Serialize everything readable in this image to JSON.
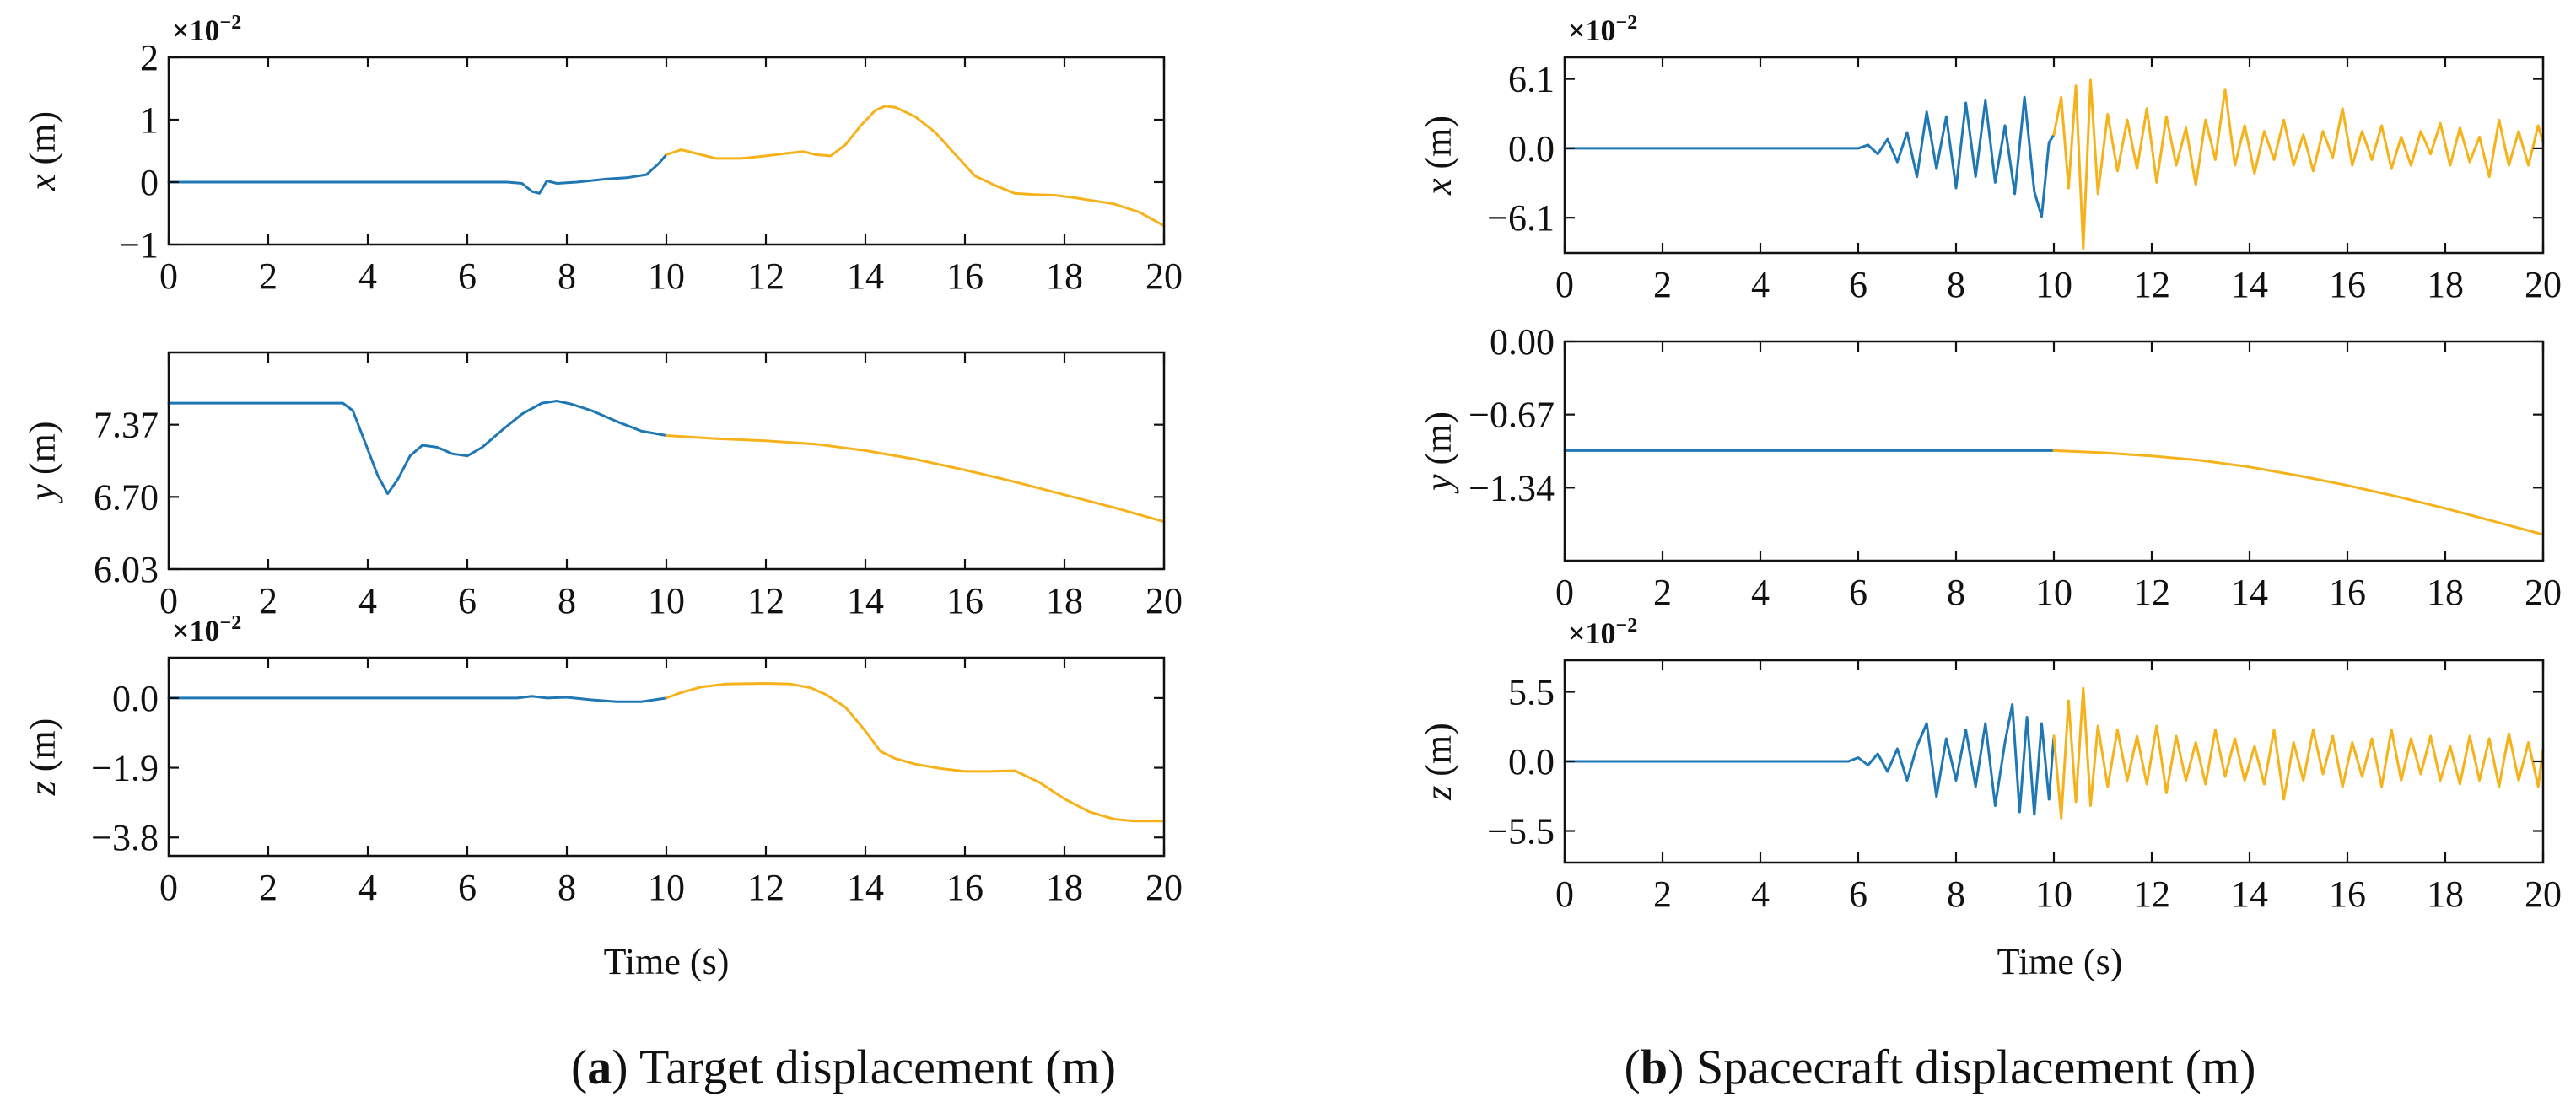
{
  "colors": {
    "phase1": "#1f77b4",
    "phase2": "#f5b21b"
  },
  "chart_data": [
    {
      "id": "a_x",
      "type": "line",
      "ylabel_var": "x",
      "ylabel_unit": "(m)",
      "multiplier": "×10",
      "multiplier_exp": "−2",
      "xlim": [
        0,
        20
      ],
      "ylim": [
        -1,
        2
      ],
      "xticks": [
        "0",
        "2",
        "4",
        "6",
        "8",
        "10",
        "12",
        "14",
        "16",
        "18",
        "20"
      ],
      "yticks": [
        {
          "v": 2,
          "t": "2"
        },
        {
          "v": 1,
          "t": "1"
        },
        {
          "v": 0,
          "t": "0"
        },
        {
          "v": -1,
          "t": "−1"
        }
      ],
      "series": [
        {
          "name": "phase1",
          "x": [
            0,
            6.8,
            7.1,
            7.3,
            7.45,
            7.6,
            7.8,
            8.2,
            8.8,
            9.2,
            9.6,
            9.85,
            10
          ],
          "y": [
            0,
            0,
            -0.02,
            -0.15,
            -0.18,
            0.02,
            -0.02,
            0,
            0.05,
            0.07,
            0.12,
            0.3,
            0.44
          ]
        },
        {
          "name": "phase2",
          "x": [
            10,
            10.3,
            10.6,
            11,
            11.5,
            12,
            12.4,
            12.75,
            13,
            13.3,
            13.6,
            13.9,
            14.2,
            14.4,
            14.6,
            15,
            15.4,
            15.8,
            16.2,
            16.6,
            17,
            17.4,
            17.8,
            18.2,
            18.6,
            19,
            19.5,
            20
          ],
          "y": [
            0.44,
            0.52,
            0.46,
            0.38,
            0.38,
            0.42,
            0.46,
            0.49,
            0.44,
            0.42,
            0.6,
            0.9,
            1.15,
            1.22,
            1.2,
            1.05,
            0.8,
            0.45,
            0.1,
            -0.05,
            -0.18,
            -0.2,
            -0.21,
            -0.25,
            -0.3,
            -0.35,
            -0.48,
            -0.7
          ]
        }
      ]
    },
    {
      "id": "a_y",
      "type": "line",
      "ylabel_var": "y",
      "ylabel_unit": "(m)",
      "xlim": [
        0,
        20
      ],
      "ylim": [
        6.03,
        8.04
      ],
      "xticks": [
        "0",
        "2",
        "4",
        "6",
        "8",
        "10",
        "12",
        "14",
        "16",
        "18",
        "20"
      ],
      "yticks": [
        {
          "v": 7.37,
          "t": "7.37"
        },
        {
          "v": 6.7,
          "t": "6.70"
        },
        {
          "v": 6.03,
          "t": "6.03"
        }
      ],
      "series": [
        {
          "name": "phase1",
          "x": [
            0,
            3.5,
            3.7,
            3.95,
            4.2,
            4.4,
            4.6,
            4.85,
            5.1,
            5.4,
            5.7,
            6,
            6.3,
            6.7,
            7.1,
            7.5,
            7.8,
            8.1,
            8.5,
            9,
            9.5,
            10
          ],
          "y": [
            7.57,
            7.57,
            7.5,
            7.2,
            6.9,
            6.73,
            6.86,
            7.08,
            7.18,
            7.16,
            7.1,
            7.08,
            7.16,
            7.32,
            7.47,
            7.57,
            7.59,
            7.56,
            7.5,
            7.4,
            7.31,
            7.27
          ]
        },
        {
          "name": "phase2",
          "x": [
            10,
            11,
            12,
            13,
            14,
            15,
            16,
            17,
            18,
            19,
            20
          ],
          "y": [
            7.27,
            7.24,
            7.22,
            7.19,
            7.13,
            7.05,
            6.95,
            6.84,
            6.72,
            6.6,
            6.47
          ]
        }
      ]
    },
    {
      "id": "a_z",
      "type": "line",
      "ylabel_var": "z",
      "ylabel_unit": "(m)",
      "multiplier": "×10",
      "multiplier_exp": "−2",
      "xlim": [
        0,
        20
      ],
      "ylim": [
        -4.3,
        1.1
      ],
      "xticks": [
        "0",
        "2",
        "4",
        "6",
        "8",
        "10",
        "12",
        "14",
        "16",
        "18",
        "20"
      ],
      "yticks": [
        {
          "v": 0,
          "t": "0.0"
        },
        {
          "v": -1.9,
          "t": "−1.9"
        },
        {
          "v": -3.8,
          "t": "−3.8"
        }
      ],
      "series": [
        {
          "name": "phase1",
          "x": [
            0,
            7,
            7.3,
            7.6,
            8,
            8.5,
            9,
            9.5,
            10
          ],
          "y": [
            0,
            0,
            0.05,
            0,
            0.02,
            -0.05,
            -0.1,
            -0.1,
            0
          ]
        },
        {
          "name": "phase2",
          "x": [
            10,
            10.3,
            10.7,
            11.2,
            12,
            12.5,
            12.9,
            13.2,
            13.6,
            14,
            14.3,
            14.6,
            15,
            15.5,
            16,
            16.5,
            17,
            17.5,
            18,
            18.5,
            19,
            19.4,
            20
          ],
          "y": [
            0,
            0.15,
            0.3,
            0.38,
            0.4,
            0.38,
            0.28,
            0.1,
            -0.25,
            -0.9,
            -1.45,
            -1.65,
            -1.8,
            -1.92,
            -2.0,
            -2.0,
            -1.98,
            -2.3,
            -2.75,
            -3.1,
            -3.3,
            -3.35,
            -3.35
          ]
        }
      ]
    },
    {
      "id": "b_x",
      "type": "line",
      "ylabel_var": "x",
      "ylabel_unit": "(m)",
      "multiplier": "×10",
      "multiplier_exp": "−2",
      "xlim": [
        0,
        20
      ],
      "ylim": [
        -9.2,
        8.0
      ],
      "xticks": [
        "0",
        "2",
        "4",
        "6",
        "8",
        "10",
        "12",
        "14",
        "16",
        "18",
        "20"
      ],
      "yticks": [
        {
          "v": 6.1,
          "t": "6.1"
        },
        {
          "v": 0,
          "t": "0.0"
        },
        {
          "v": -6.1,
          "t": "−6.1"
        }
      ],
      "series": [
        {
          "name": "phase1",
          "x": [
            0,
            6,
            6.2,
            6.4,
            6.6,
            6.8,
            7,
            7.2,
            7.4,
            7.6,
            7.8,
            8,
            8.2,
            8.4,
            8.6,
            8.8,
            9,
            9.2,
            9.4,
            9.6,
            9.75,
            9.9,
            10
          ],
          "y": [
            0,
            0,
            0.3,
            -0.5,
            0.8,
            -1.2,
            1.4,
            -2.5,
            3.2,
            -1.8,
            2.8,
            -3.5,
            4.0,
            -2.5,
            4.2,
            -3.0,
            2.0,
            -4.0,
            4.5,
            -3.8,
            -6.0,
            0.5,
            1.2
          ]
        },
        {
          "name": "phase2",
          "x": [
            10,
            10.15,
            10.3,
            10.45,
            10.6,
            10.75,
            10.9,
            11.1,
            11.3,
            11.5,
            11.7,
            11.9,
            12.1,
            12.3,
            12.5,
            12.7,
            12.9,
            13.1,
            13.3,
            13.5,
            13.7,
            13.9,
            14.1,
            14.3,
            14.5,
            14.7,
            14.9,
            15.1,
            15.3,
            15.5,
            15.7,
            15.9,
            16.1,
            16.3,
            16.5,
            16.7,
            16.9,
            17.1,
            17.3,
            17.5,
            17.7,
            17.9,
            18.1,
            18.3,
            18.5,
            18.7,
            18.9,
            19.1,
            19.3,
            19.5,
            19.7,
            19.9,
            20
          ],
          "y": [
            1.2,
            4.5,
            -3.5,
            5.5,
            -8.8,
            6.0,
            -4.0,
            3.0,
            -2.0,
            2.5,
            -1.8,
            3.5,
            -3.0,
            2.8,
            -1.5,
            1.8,
            -3.2,
            2.5,
            -1.0,
            5.2,
            -1.5,
            2.0,
            -2.2,
            1.5,
            -1.0,
            2.5,
            -1.5,
            1.2,
            -2.0,
            1.5,
            -0.8,
            3.5,
            -1.5,
            1.5,
            -1.0,
            2.0,
            -1.8,
            1.0,
            -1.5,
            1.5,
            -0.5,
            2.2,
            -1.5,
            1.8,
            -1.2,
            1.0,
            -2.5,
            2.5,
            -1.5,
            1.5,
            -1.5,
            2.0,
            0.5
          ]
        }
      ]
    },
    {
      "id": "b_y",
      "type": "line",
      "ylabel_var": "y",
      "ylabel_unit": "(m)",
      "xlim": [
        0,
        20
      ],
      "ylim": [
        -2.01,
        0.0
      ],
      "xticks": [
        "0",
        "2",
        "4",
        "6",
        "8",
        "10",
        "12",
        "14",
        "16",
        "18",
        "20"
      ],
      "yticks": [
        {
          "v": 0,
          "t": "0.00"
        },
        {
          "v": -0.67,
          "t": "−0.67"
        },
        {
          "v": -1.34,
          "t": "−1.34"
        }
      ],
      "series": [
        {
          "name": "phase1",
          "x": [
            0,
            10
          ],
          "y": [
            -1.0,
            -1.0
          ]
        },
        {
          "name": "phase2",
          "x": [
            10,
            11,
            12,
            13,
            14,
            15,
            16,
            17,
            18,
            19,
            20
          ],
          "y": [
            -1.0,
            -1.02,
            -1.05,
            -1.09,
            -1.15,
            -1.23,
            -1.32,
            -1.42,
            -1.53,
            -1.65,
            -1.77
          ]
        }
      ]
    },
    {
      "id": "b_z",
      "type": "line",
      "ylabel_var": "z",
      "ylabel_unit": "(m)",
      "multiplier": "×10",
      "multiplier_exp": "−2",
      "xlim": [
        0,
        20
      ],
      "ylim": [
        -8.0,
        8.0
      ],
      "xticks": [
        "0",
        "2",
        "4",
        "6",
        "8",
        "10",
        "12",
        "14",
        "16",
        "18",
        "20"
      ],
      "yticks": [
        {
          "v": 5.5,
          "t": "5.5"
        },
        {
          "v": 0,
          "t": "0.0"
        },
        {
          "v": -5.5,
          "t": "−5.5"
        }
      ],
      "series": [
        {
          "name": "phase1",
          "x": [
            0,
            5.8,
            6,
            6.2,
            6.4,
            6.6,
            6.8,
            7,
            7.2,
            7.4,
            7.6,
            7.8,
            8,
            8.2,
            8.4,
            8.6,
            8.8,
            9,
            9.15,
            9.3,
            9.45,
            9.6,
            9.75,
            9.9,
            10
          ],
          "y": [
            0,
            0,
            0.3,
            -0.3,
            0.6,
            -0.8,
            1.0,
            -1.5,
            1.2,
            3.0,
            -2.8,
            1.8,
            -1.5,
            2.5,
            -2.0,
            3.0,
            -3.5,
            1.5,
            4.5,
            -4.0,
            3.5,
            -4.2,
            3.0,
            -3.0,
            2.0
          ]
        },
        {
          "name": "phase2",
          "x": [
            10,
            10.15,
            10.3,
            10.45,
            10.6,
            10.75,
            10.9,
            11.1,
            11.3,
            11.5,
            11.7,
            11.9,
            12.1,
            12.3,
            12.5,
            12.7,
            12.9,
            13.1,
            13.3,
            13.5,
            13.7,
            13.9,
            14.1,
            14.3,
            14.5,
            14.7,
            14.9,
            15.1,
            15.3,
            15.5,
            15.7,
            15.9,
            16.1,
            16.3,
            16.5,
            16.7,
            16.9,
            17.1,
            17.3,
            17.5,
            17.7,
            17.9,
            18.1,
            18.3,
            18.5,
            18.7,
            18.9,
            19.1,
            19.3,
            19.5,
            19.7,
            19.9,
            20
          ],
          "y": [
            2.0,
            -4.5,
            4.8,
            -3.2,
            5.8,
            -3.5,
            2.8,
            -2.0,
            2.5,
            -1.5,
            2.0,
            -1.8,
            2.8,
            -2.5,
            2.0,
            -1.5,
            1.5,
            -1.8,
            2.5,
            -1.2,
            1.8,
            -1.5,
            1.2,
            -1.8,
            2.5,
            -3.0,
            1.5,
            -1.5,
            2.5,
            -1.0,
            2.0,
            -2.0,
            1.5,
            -1.2,
            1.8,
            -2.0,
            2.5,
            -1.5,
            1.8,
            -1.0,
            2.0,
            -1.5,
            1.2,
            -1.8,
            2.0,
            -1.5,
            1.8,
            -2.0,
            2.2,
            -1.5,
            1.5,
            -2.0,
            1.0
          ]
        }
      ]
    }
  ],
  "axis": {
    "xlabel": "Time (s)"
  },
  "captions": {
    "a": {
      "letter": "(a)",
      "letter_open": "(",
      "letter_bold": "a",
      "letter_close": ")",
      "text": " Target displacement (m)"
    },
    "b": {
      "letter": "(b)",
      "letter_open": "(",
      "letter_bold": "b",
      "letter_close": ")",
      "text": " Spacecraft displacement (m)"
    }
  }
}
